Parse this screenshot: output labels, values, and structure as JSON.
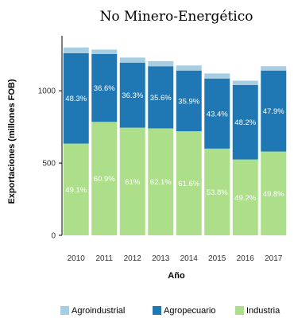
{
  "chart_data": {
    "type": "bar",
    "stacked": true,
    "title": "No Minero-Energético",
    "xlabel": "Año",
    "ylabel": "Exportaciones (millones FOB)",
    "categories": [
      "2010",
      "2011",
      "2012",
      "2013",
      "2014",
      "2015",
      "2016",
      "2017"
    ],
    "ylim": [
      0,
      1300
    ],
    "yticks": [
      0,
      500,
      1000
    ],
    "series": [
      {
        "name": "Industria",
        "color": "#addf8a",
        "values": [
          635,
          785,
          745,
          740,
          720,
          600,
          525,
          580
        ],
        "labels": [
          "49.1%",
          "60.9%",
          "61%",
          "62.1%",
          "61.6%",
          "53.8%",
          "49.2%",
          "49.8%"
        ]
      },
      {
        "name": "Agropecuario",
        "color": "#1f78b4",
        "values": [
          625,
          470,
          450,
          430,
          420,
          485,
          515,
          560
        ],
        "labels": [
          "48.3%",
          "36.6%",
          "36.3%",
          "35.6%",
          "35.9%",
          "43.4%",
          "48.2%",
          "47.9%"
        ]
      },
      {
        "name": "Agroindustrial",
        "color": "#a6cee3",
        "values": [
          40,
          30,
          35,
          35,
          35,
          35,
          30,
          30
        ],
        "labels": [
          "",
          "",
          "",
          "",
          "",
          "",
          "",
          ""
        ]
      }
    ],
    "legend": {
      "position": "bottom",
      "items": [
        "Agroindustrial",
        "Agropecuario",
        "Industria"
      ]
    },
    "grid": false
  }
}
